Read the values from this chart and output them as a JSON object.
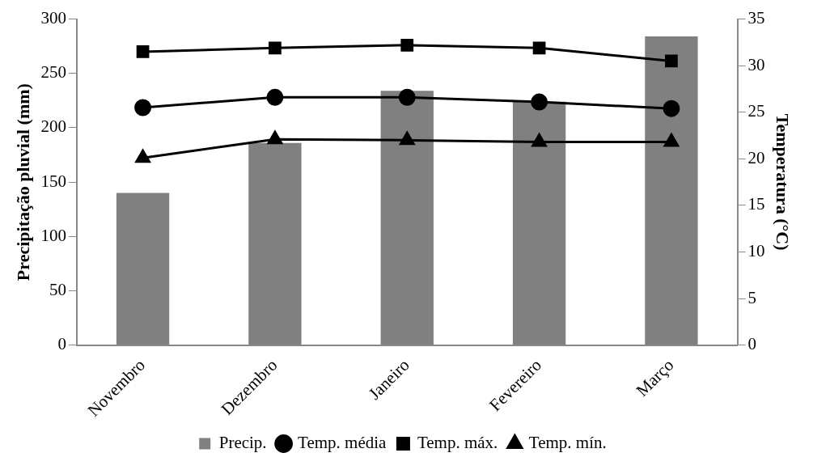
{
  "chart_data": {
    "type": "bar",
    "categories": [
      "Novembro",
      "Dezembro",
      "Janeiro",
      "Fevereiro",
      "Março"
    ],
    "ylabel": "Precipitação pluvial (mm)",
    "y2label": "Temperatura (°C)",
    "series": [
      {
        "name": "Precip.",
        "color": "#808080",
        "values": [
          140,
          186,
          234,
          224,
          284
        ]
      },
      {
        "name": "Temp. média",
        "type": "line",
        "axis": "y2",
        "marker": "circle",
        "color": "#000000",
        "values": [
          25.5,
          26.6,
          26.6,
          26.1,
          25.4
        ]
      },
      {
        "name": "Temp. máx.",
        "type": "line",
        "axis": "y2",
        "marker": "square",
        "color": "#000000",
        "values": [
          31.5,
          31.9,
          32.2,
          31.9,
          30.5
        ]
      },
      {
        "name": "Temp. mín.",
        "type": "line",
        "axis": "y2",
        "marker": "triangle",
        "color": "#000000",
        "values": [
          20.1,
          22.1,
          22.0,
          21.8,
          21.8
        ]
      }
    ],
    "ylim": [
      0,
      300
    ],
    "yticks": [
      0,
      50,
      100,
      150,
      200,
      250,
      300
    ],
    "y2lim": [
      0,
      35
    ],
    "y2ticks": [
      0,
      5,
      10,
      15,
      20,
      25,
      30,
      35
    ],
    "grid": false,
    "legend": "bottom"
  }
}
